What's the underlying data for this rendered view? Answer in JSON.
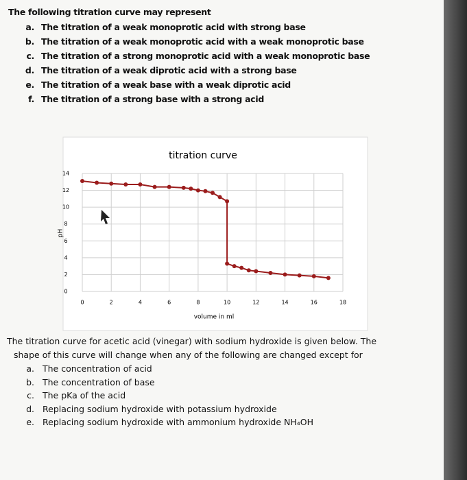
{
  "question1": {
    "prompt": "The following titration curve may represent",
    "options": [
      {
        "letter": "a.",
        "text": "The titration of a weak monoprotic acid with strong base"
      },
      {
        "letter": "b.",
        "text": "The titration of a weak monoprotic acid with a weak monoprotic base"
      },
      {
        "letter": "c.",
        "text": "The titration of a strong monoprotic acid with a weak monoprotic base"
      },
      {
        "letter": "d.",
        "text": "The titration of a weak diprotic acid with a strong base"
      },
      {
        "letter": "e.",
        "text": "The titration of a weak base with a weak diprotic acid"
      },
      {
        "letter": "f.",
        "text": "The titration of a strong base with a strong acid"
      }
    ]
  },
  "chart_data": {
    "type": "line",
    "title": "titration curve",
    "x_label": "volume in ml",
    "y_label": "pH",
    "x": [
      0,
      1,
      2,
      3,
      4,
      5,
      6,
      7,
      7.5,
      8,
      8.5,
      9,
      9.5,
      10,
      10,
      10.5,
      11,
      11.5,
      12,
      13,
      14,
      15,
      16,
      17
    ],
    "values": [
      13.1,
      12.9,
      12.8,
      12.7,
      12.7,
      12.4,
      12.4,
      12.3,
      12.2,
      12.0,
      11.9,
      11.7,
      11.2,
      10.7,
      3.3,
      3.0,
      2.8,
      2.5,
      2.4,
      2.2,
      2.0,
      1.9,
      1.8,
      1.6
    ],
    "color": "#9b1c1c",
    "xlim": [
      0,
      18
    ],
    "xticks": [
      0,
      2,
      4,
      6,
      8,
      10,
      12,
      14,
      16,
      18
    ],
    "ylim": [
      0,
      14
    ],
    "yticks": [
      0,
      2,
      4,
      6,
      8,
      10,
      12,
      14
    ],
    "grid": true
  },
  "question2": {
    "prompt": "The titration curve for acetic acid (vinegar) with sodium hydroxide is given below. The shape of this curve will change when any of the following are changed except for",
    "options": [
      {
        "letter": "a.",
        "text": "The concentration of acid"
      },
      {
        "letter": "b.",
        "text": "The concentration of base"
      },
      {
        "letter": "c.",
        "text": "The pKa of the acid"
      },
      {
        "letter": "d.",
        "text": "Replacing sodium hydroxide with potassium hydroxide"
      },
      {
        "letter": "e.",
        "text": "Replacing sodium hydroxide with ammonium hydroxide NH₄OH"
      }
    ]
  }
}
